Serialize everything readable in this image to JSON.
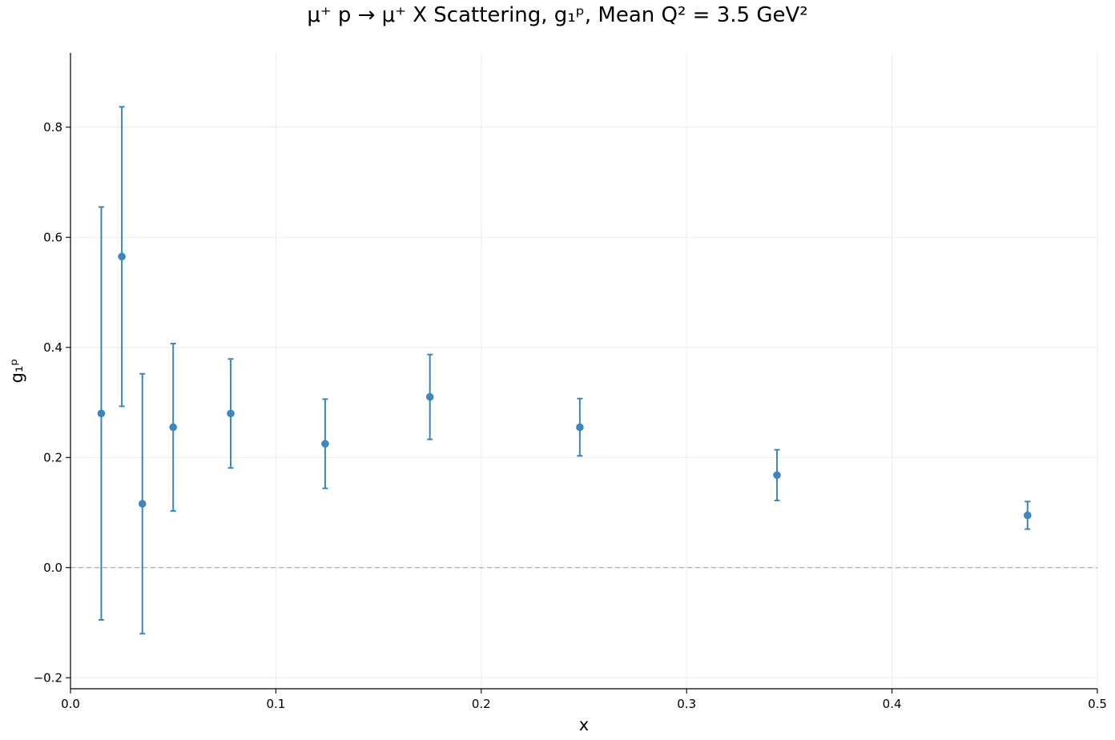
{
  "chart_data": {
    "type": "scatter",
    "title": "μ⁺ p → μ⁺ X Scattering, g₁ᵖ, Mean Q² = 3.5 GeV²",
    "xlabel": "x",
    "ylabel": "g₁ᵖ",
    "xlim": [
      0.0,
      0.5
    ],
    "ylim": [
      -0.22,
      0.935
    ],
    "x_ticks": [
      0.0,
      0.1,
      0.2,
      0.3,
      0.4,
      0.5
    ],
    "x_tick_labels": [
      "0.0",
      "0.1",
      "0.2",
      "0.3",
      "0.4",
      "0.5"
    ],
    "y_ticks": [
      -0.2,
      0.0,
      0.2,
      0.4,
      0.6,
      0.8
    ],
    "y_tick_labels": [
      "−0.2",
      "0.0",
      "0.2",
      "0.4",
      "0.6",
      "0.8"
    ],
    "grid": true,
    "reference_line": {
      "y": 0.0,
      "style": "dashed",
      "color": "#b0b0b0"
    },
    "series": [
      {
        "color": "#3a86c0",
        "points": [
          {
            "x": 0.015,
            "y": 0.28,
            "err": 0.375
          },
          {
            "x": 0.025,
            "y": 0.565,
            "err": 0.272
          },
          {
            "x": 0.035,
            "y": 0.116,
            "err": 0.236
          },
          {
            "x": 0.05,
            "y": 0.255,
            "err": 0.152
          },
          {
            "x": 0.078,
            "y": 0.28,
            "err": 0.099
          },
          {
            "x": 0.124,
            "y": 0.225,
            "err": 0.081
          },
          {
            "x": 0.175,
            "y": 0.31,
            "err": 0.077
          },
          {
            "x": 0.248,
            "y": 0.255,
            "err": 0.052
          },
          {
            "x": 0.344,
            "y": 0.168,
            "err": 0.046
          },
          {
            "x": 0.466,
            "y": 0.095,
            "err": 0.025
          }
        ]
      }
    ]
  }
}
